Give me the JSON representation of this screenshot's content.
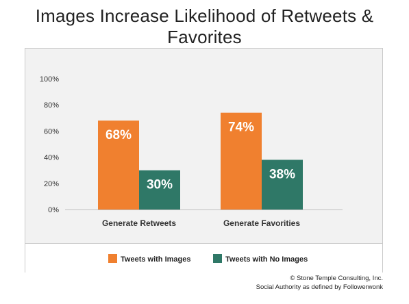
{
  "title": "Images Increase Likelihood of Retweets & Favorites",
  "credit": {
    "line1": "© Stone Temple Consulting, Inc.",
    "line2": "Social Authority as defined by Followerwonk"
  },
  "colors": {
    "series1": "#f0802f",
    "series2": "#2f7867",
    "panel": "#f2f2f2"
  },
  "chart_data": {
    "type": "bar",
    "categories": [
      "Generate Retweets",
      "Generate Favorities"
    ],
    "series": [
      {
        "name": "Tweets with Images",
        "values": [
          68,
          74
        ],
        "labels": [
          "68%",
          "74%"
        ]
      },
      {
        "name": "Tweets with No Images",
        "values": [
          30,
          38
        ],
        "labels": [
          "30%",
          "38%"
        ]
      }
    ],
    "yticks": [
      "0%",
      "20%",
      "40%",
      "60%",
      "80%",
      "100%"
    ],
    "ylim": [
      0,
      100
    ],
    "grid": false,
    "legend": "bottom"
  }
}
